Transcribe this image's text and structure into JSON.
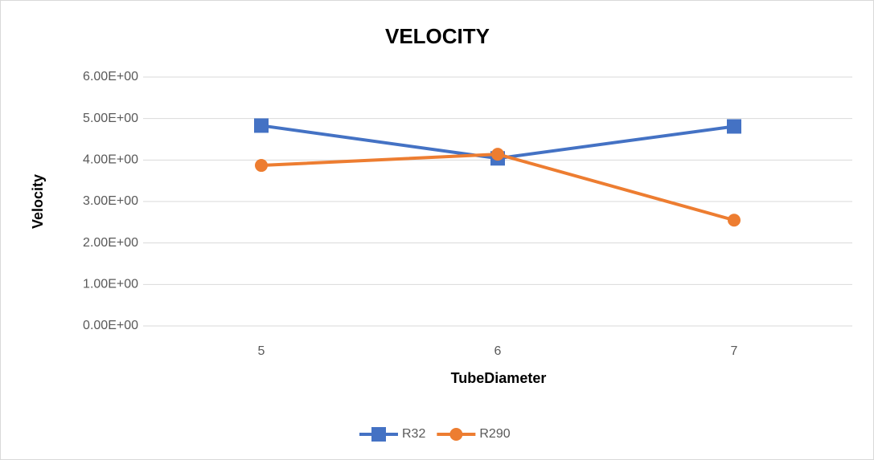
{
  "chart_data": {
    "type": "line",
    "title": "VELOCITY",
    "x_label": "TubeDiameter",
    "y_label": "Velocity",
    "categories": [
      "5",
      "6",
      "7"
    ],
    "series": [
      {
        "name": "R32",
        "color": "#4472c4",
        "marker": "square",
        "values": [
          4.83,
          4.04,
          4.81
        ]
      },
      {
        "name": "R290",
        "color": "#ed7d31",
        "marker": "circle",
        "values": [
          3.87,
          4.14,
          2.55
        ]
      }
    ],
    "ylim": [
      0,
      6
    ],
    "yticks": [
      {
        "value": 0,
        "label": "0.00E+00"
      },
      {
        "value": 1,
        "label": "1.00E+00"
      },
      {
        "value": 2,
        "label": "2.00E+00"
      },
      {
        "value": 3,
        "label": "3.00E+00"
      },
      {
        "value": 4,
        "label": "4.00E+00"
      },
      {
        "value": 5,
        "label": "5.00E+00"
      },
      {
        "value": 6,
        "label": "6.00E+00"
      }
    ],
    "grid": true,
    "legend": "bottom"
  }
}
